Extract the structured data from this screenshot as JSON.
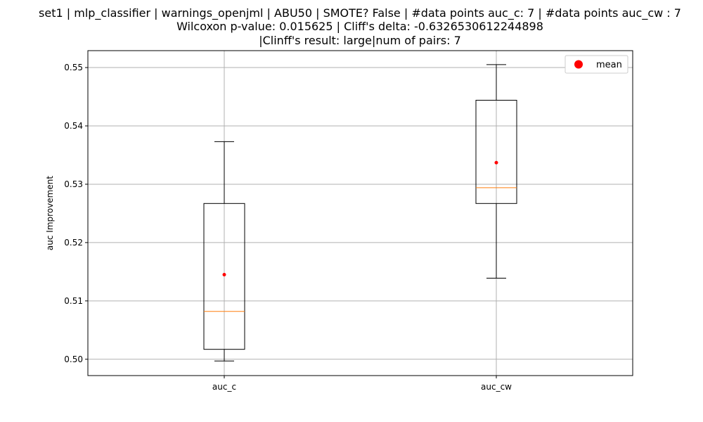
{
  "chart_data": {
    "type": "box",
    "title_lines": [
      "set1 | mlp_classifier | warnings_openjml | ABU50 | SMOTE? False | #data points auc_c: 7 | #data points auc_cw : 7",
      "Wilcoxon p-value: 0.015625 | Cliff's delta: -0.6326530612244898",
      "|Clinff's result: large|num of pairs: 7"
    ],
    "xlabel": "",
    "ylabel": "auc Improvement",
    "ylim": [
      0.4972,
      0.5529
    ],
    "yticks": [
      0.5,
      0.51,
      0.52,
      0.53,
      0.54,
      0.55
    ],
    "ytick_labels": [
      "0.50",
      "0.51",
      "0.52",
      "0.53",
      "0.54",
      "0.55"
    ],
    "grid": true,
    "legend": {
      "label": "mean",
      "placement": "top-right"
    },
    "categories": [
      "auc_c",
      "auc_cw"
    ],
    "boxes": [
      {
        "name": "auc_c",
        "whisker_low": 0.4997,
        "q1": 0.5017,
        "median": 0.5082,
        "q3": 0.5267,
        "whisker_high": 0.5373,
        "mean": 0.5145
      },
      {
        "name": "auc_cw",
        "whisker_low": 0.5139,
        "q1": 0.5267,
        "median": 0.5294,
        "q3": 0.5444,
        "whisker_high": 0.5505,
        "mean": 0.5337
      }
    ],
    "colors": {
      "box": "#000000",
      "median": "#ff7f0e",
      "mean": "#ff0000",
      "grid": "#b0b0b0"
    }
  }
}
